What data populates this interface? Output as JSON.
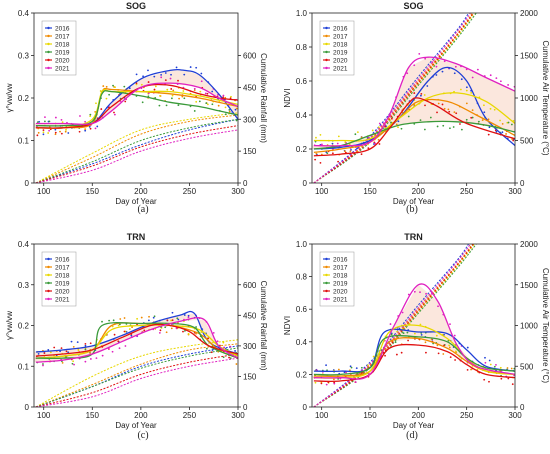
{
  "colors": {
    "2016": "#1f3fd6",
    "2017": "#f08a00",
    "2018": "#e8d800",
    "2019": "#3a9a3a",
    "2020": "#e01010",
    "2021": "#e020c0"
  },
  "chart_data": [
    {
      "id": "a",
      "type": "line",
      "title": "SOG",
      "panel_label": "(a)",
      "xlabel": "Day of Year",
      "ylabel": "γ°vw/vw",
      "ylabel2": "Cumulative Rainfall (mm)",
      "xlim": [
        90,
        300
      ],
      "ylim": [
        0,
        0.4
      ],
      "y2lim": [
        0,
        800
      ],
      "xticks": [
        100,
        150,
        200,
        250,
        300
      ],
      "yticks": [
        0,
        0.1,
        0.2,
        0.3,
        0.4
      ],
      "y2ticks": [
        0,
        150,
        300,
        450,
        600
      ],
      "legend_position": "top-left",
      "series": [
        {
          "name": "2016",
          "x": [
            92,
            120,
            150,
            170,
            200,
            230,
            245,
            260,
            280,
            300
          ],
          "y": [
            0.13,
            0.13,
            0.14,
            0.19,
            0.245,
            0.265,
            0.265,
            0.255,
            0.21,
            0.15
          ]
        },
        {
          "name": "2017",
          "x": [
            92,
            120,
            150,
            160,
            170,
            200,
            230,
            260,
            280,
            300
          ],
          "y": [
            0.13,
            0.13,
            0.14,
            0.215,
            0.22,
            0.215,
            0.21,
            0.2,
            0.19,
            0.18
          ]
        },
        {
          "name": "2018",
          "x": [
            92,
            120,
            150,
            160,
            170,
            200,
            230,
            260,
            280,
            300
          ],
          "y": [
            0.13,
            0.13,
            0.15,
            0.215,
            0.215,
            0.215,
            0.215,
            0.205,
            0.195,
            0.185
          ]
        },
        {
          "name": "2019",
          "x": [
            92,
            120,
            150,
            160,
            170,
            200,
            230,
            260,
            280,
            300
          ],
          "y": [
            0.135,
            0.135,
            0.145,
            0.21,
            0.215,
            0.205,
            0.19,
            0.18,
            0.17,
            0.16
          ]
        },
        {
          "name": "2020",
          "x": [
            92,
            120,
            150,
            170,
            200,
            230,
            260,
            280,
            300
          ],
          "y": [
            0.13,
            0.13,
            0.14,
            0.18,
            0.225,
            0.23,
            0.21,
            0.2,
            0.195
          ]
        },
        {
          "name": "2021",
          "x": [
            92,
            120,
            150,
            170,
            200,
            230,
            260,
            280,
            300
          ],
          "y": [
            0.14,
            0.14,
            0.14,
            0.17,
            0.225,
            0.235,
            0.225,
            0.2,
            0.18
          ]
        }
      ],
      "secondary_series": [
        {
          "name": "2016",
          "x": [
            92,
            150,
            200,
            250,
            300
          ],
          "y2": [
            0,
            90,
            180,
            250,
            300
          ]
        },
        {
          "name": "2017",
          "x": [
            92,
            150,
            200,
            250,
            300
          ],
          "y2": [
            0,
            120,
            230,
            290,
            320
          ]
        },
        {
          "name": "2018",
          "x": [
            92,
            150,
            200,
            250,
            300
          ],
          "y2": [
            0,
            140,
            250,
            300,
            330
          ]
        },
        {
          "name": "2019",
          "x": [
            92,
            150,
            200,
            250,
            300
          ],
          "y2": [
            0,
            100,
            200,
            260,
            300
          ]
        },
        {
          "name": "2020",
          "x": [
            92,
            150,
            200,
            250,
            300
          ],
          "y2": [
            0,
            80,
            170,
            230,
            270
          ]
        },
        {
          "name": "2021",
          "x": [
            92,
            150,
            200,
            250,
            300
          ],
          "y2": [
            0,
            60,
            150,
            210,
            250
          ]
        }
      ],
      "fill_between": [
        "2016",
        "2021"
      ]
    },
    {
      "id": "b",
      "type": "line",
      "title": "SOG",
      "panel_label": "(b)",
      "xlabel": "Day of Year",
      "ylabel": "NDVI",
      "ylabel2": "Cumulative Air Temperature (°C)",
      "xlim": [
        90,
        300
      ],
      "ylim": [
        0,
        1
      ],
      "y2lim": [
        0,
        2000
      ],
      "xticks": [
        100,
        150,
        200,
        250,
        300
      ],
      "yticks": [
        0,
        0.2,
        0.4,
        0.6,
        0.8,
        1.0
      ],
      "y2ticks": [
        0,
        500,
        1000,
        1500,
        2000
      ],
      "legend_position": "top-left",
      "series": [
        {
          "name": "2016",
          "x": [
            92,
            120,
            150,
            180,
            210,
            230,
            250,
            270,
            300
          ],
          "y": [
            0.2,
            0.21,
            0.25,
            0.38,
            0.6,
            0.68,
            0.6,
            0.38,
            0.22
          ]
        },
        {
          "name": "2017",
          "x": [
            92,
            120,
            150,
            180,
            200,
            230,
            260,
            300
          ],
          "y": [
            0.18,
            0.2,
            0.24,
            0.38,
            0.48,
            0.48,
            0.4,
            0.28
          ]
        },
        {
          "name": "2018",
          "x": [
            92,
            120,
            150,
            180,
            210,
            240,
            270,
            300
          ],
          "y": [
            0.25,
            0.25,
            0.26,
            0.38,
            0.5,
            0.53,
            0.48,
            0.35
          ]
        },
        {
          "name": "2019",
          "x": [
            92,
            120,
            150,
            180,
            210,
            240,
            270,
            300
          ],
          "y": [
            0.2,
            0.22,
            0.28,
            0.34,
            0.36,
            0.36,
            0.34,
            0.3
          ]
        },
        {
          "name": "2020",
          "x": [
            92,
            120,
            150,
            170,
            190,
            200,
            220,
            250,
            300
          ],
          "y": [
            0.16,
            0.17,
            0.2,
            0.32,
            0.47,
            0.5,
            0.45,
            0.35,
            0.26
          ]
        },
        {
          "name": "2021",
          "x": [
            92,
            120,
            150,
            170,
            190,
            210,
            240,
            270,
            300
          ],
          "y": [
            0.22,
            0.22,
            0.24,
            0.4,
            0.68,
            0.74,
            0.7,
            0.62,
            0.54
          ]
        }
      ],
      "secondary_series": [
        {
          "name": "2016",
          "x": [
            92,
            150,
            200,
            240,
            252
          ],
          "y2": [
            0,
            550,
            1250,
            1800,
            2000
          ]
        },
        {
          "name": "2017",
          "x": [
            92,
            150,
            200,
            240,
            256
          ],
          "y2": [
            0,
            520,
            1200,
            1750,
            2000
          ]
        },
        {
          "name": "2018",
          "x": [
            92,
            150,
            200,
            240,
            258
          ],
          "y2": [
            0,
            500,
            1170,
            1720,
            2000
          ]
        },
        {
          "name": "2019",
          "x": [
            92,
            150,
            200,
            240,
            260
          ],
          "y2": [
            0,
            480,
            1150,
            1700,
            2000
          ]
        },
        {
          "name": "2020",
          "x": [
            92,
            150,
            200,
            240,
            257
          ],
          "y2": [
            0,
            500,
            1180,
            1740,
            2000
          ]
        },
        {
          "name": "2021",
          "x": [
            92,
            150,
            200,
            240,
            254
          ],
          "y2": [
            0,
            530,
            1220,
            1780,
            2000
          ]
        }
      ],
      "fill_between": [
        "2019",
        "2021"
      ]
    },
    {
      "id": "c",
      "type": "line",
      "title": "TRN",
      "panel_label": "(c)",
      "xlabel": "Day of Year",
      "ylabel": "γ°vw/vw",
      "ylabel2": "Cumulative Rainfall (mm)",
      "xlim": [
        90,
        300
      ],
      "ylim": [
        0,
        0.4
      ],
      "y2lim": [
        0,
        800
      ],
      "xticks": [
        100,
        150,
        200,
        250,
        300
      ],
      "yticks": [
        0,
        0.1,
        0.2,
        0.3,
        0.4
      ],
      "y2ticks": [
        0,
        150,
        300,
        450,
        600
      ],
      "legend_position": "top-left",
      "series": [
        {
          "name": "2016",
          "x": [
            92,
            120,
            150,
            180,
            210,
            240,
            255,
            270,
            300
          ],
          "y": [
            0.135,
            0.14,
            0.15,
            0.175,
            0.205,
            0.225,
            0.23,
            0.16,
            0.13
          ]
        },
        {
          "name": "2017",
          "x": [
            92,
            120,
            150,
            170,
            200,
            230,
            260,
            280,
            300
          ],
          "y": [
            0.12,
            0.125,
            0.14,
            0.2,
            0.205,
            0.2,
            0.18,
            0.14,
            0.12
          ]
        },
        {
          "name": "2018",
          "x": [
            92,
            120,
            150,
            170,
            200,
            230,
            260,
            280,
            300
          ],
          "y": [
            0.12,
            0.125,
            0.14,
            0.19,
            0.2,
            0.2,
            0.19,
            0.15,
            0.125
          ]
        },
        {
          "name": "2019",
          "x": [
            92,
            120,
            150,
            160,
            200,
            230,
            255,
            270,
            300
          ],
          "y": [
            0.12,
            0.12,
            0.13,
            0.2,
            0.205,
            0.205,
            0.195,
            0.15,
            0.12
          ]
        },
        {
          "name": "2020",
          "x": [
            92,
            120,
            150,
            180,
            210,
            230,
            250,
            270,
            300
          ],
          "y": [
            0.125,
            0.13,
            0.14,
            0.17,
            0.2,
            0.2,
            0.185,
            0.15,
            0.13
          ]
        },
        {
          "name": "2021",
          "x": [
            92,
            120,
            150,
            180,
            210,
            240,
            265,
            280,
            300
          ],
          "y": [
            0.11,
            0.115,
            0.13,
            0.16,
            0.19,
            0.21,
            0.215,
            0.15,
            0.12
          ]
        }
      ],
      "secondary_series": [
        {
          "name": "2016",
          "x": [
            92,
            150,
            200,
            250,
            300
          ],
          "y2": [
            0,
            100,
            200,
            260,
            300
          ]
        },
        {
          "name": "2017",
          "x": [
            92,
            150,
            200,
            250,
            300
          ],
          "y2": [
            0,
            110,
            210,
            280,
            310
          ]
        },
        {
          "name": "2018",
          "x": [
            92,
            150,
            200,
            250,
            300
          ],
          "y2": [
            0,
            150,
            250,
            300,
            330
          ]
        },
        {
          "name": "2019",
          "x": [
            92,
            150,
            200,
            250,
            300
          ],
          "y2": [
            0,
            100,
            190,
            250,
            290
          ]
        },
        {
          "name": "2020",
          "x": [
            92,
            150,
            200,
            250,
            300
          ],
          "y2": [
            0,
            70,
            160,
            220,
            260
          ]
        },
        {
          "name": "2021",
          "x": [
            92,
            150,
            200,
            250,
            300
          ],
          "y2": [
            0,
            50,
            140,
            200,
            240
          ]
        }
      ],
      "fill_between": [
        "2016",
        "2021"
      ]
    },
    {
      "id": "d",
      "type": "line",
      "title": "TRN",
      "panel_label": "(d)",
      "xlabel": "Day of Year",
      "ylabel": "NDVI",
      "ylabel2": "Cumulative Air Temperature (°C)",
      "xlim": [
        90,
        300
      ],
      "ylim": [
        0,
        1
      ],
      "y2lim": [
        0,
        2000
      ],
      "xticks": [
        100,
        150,
        200,
        250,
        300
      ],
      "yticks": [
        0,
        0.2,
        0.4,
        0.6,
        0.8,
        1.0
      ],
      "y2ticks": [
        0,
        500,
        1000,
        1500,
        2000
      ],
      "legend_position": "top-left",
      "series": [
        {
          "name": "2016",
          "x": [
            92,
            120,
            150,
            165,
            200,
            230,
            250,
            270,
            300
          ],
          "y": [
            0.22,
            0.22,
            0.24,
            0.46,
            0.46,
            0.45,
            0.35,
            0.25,
            0.22
          ]
        },
        {
          "name": "2017",
          "x": [
            92,
            120,
            150,
            170,
            200,
            230,
            250,
            270,
            300
          ],
          "y": [
            0.19,
            0.19,
            0.22,
            0.4,
            0.42,
            0.36,
            0.28,
            0.22,
            0.2
          ]
        },
        {
          "name": "2018",
          "x": [
            92,
            120,
            150,
            170,
            200,
            230,
            250,
            270,
            300
          ],
          "y": [
            0.18,
            0.18,
            0.22,
            0.46,
            0.5,
            0.42,
            0.3,
            0.22,
            0.2
          ]
        },
        {
          "name": "2019",
          "x": [
            92,
            120,
            150,
            165,
            200,
            230,
            250,
            270,
            300
          ],
          "y": [
            0.2,
            0.2,
            0.24,
            0.42,
            0.43,
            0.4,
            0.3,
            0.24,
            0.22
          ]
        },
        {
          "name": "2020",
          "x": [
            92,
            120,
            150,
            170,
            200,
            230,
            250,
            270,
            300
          ],
          "y": [
            0.16,
            0.16,
            0.2,
            0.36,
            0.38,
            0.34,
            0.26,
            0.2,
            0.18
          ]
        },
        {
          "name": "2021",
          "x": [
            92,
            120,
            150,
            175,
            200,
            220,
            240,
            260,
            300
          ],
          "y": [
            0.18,
            0.18,
            0.2,
            0.5,
            0.75,
            0.65,
            0.38,
            0.25,
            0.2
          ]
        }
      ],
      "secondary_series": [
        {
          "name": "2016",
          "x": [
            92,
            150,
            200,
            240,
            252
          ],
          "y2": [
            0,
            550,
            1250,
            1800,
            2000
          ]
        },
        {
          "name": "2017",
          "x": [
            92,
            150,
            200,
            240,
            256
          ],
          "y2": [
            0,
            520,
            1200,
            1750,
            2000
          ]
        },
        {
          "name": "2018",
          "x": [
            92,
            150,
            200,
            240,
            258
          ],
          "y2": [
            0,
            500,
            1170,
            1720,
            2000
          ]
        },
        {
          "name": "2019",
          "x": [
            92,
            150,
            200,
            240,
            260
          ],
          "y2": [
            0,
            480,
            1150,
            1700,
            2000
          ]
        },
        {
          "name": "2020",
          "x": [
            92,
            150,
            200,
            240,
            257
          ],
          "y2": [
            0,
            500,
            1180,
            1740,
            2000
          ]
        },
        {
          "name": "2021",
          "x": [
            92,
            150,
            200,
            240,
            254
          ],
          "y2": [
            0,
            530,
            1220,
            1780,
            2000
          ]
        }
      ],
      "fill_between": [
        "2017",
        "2021"
      ]
    }
  ]
}
